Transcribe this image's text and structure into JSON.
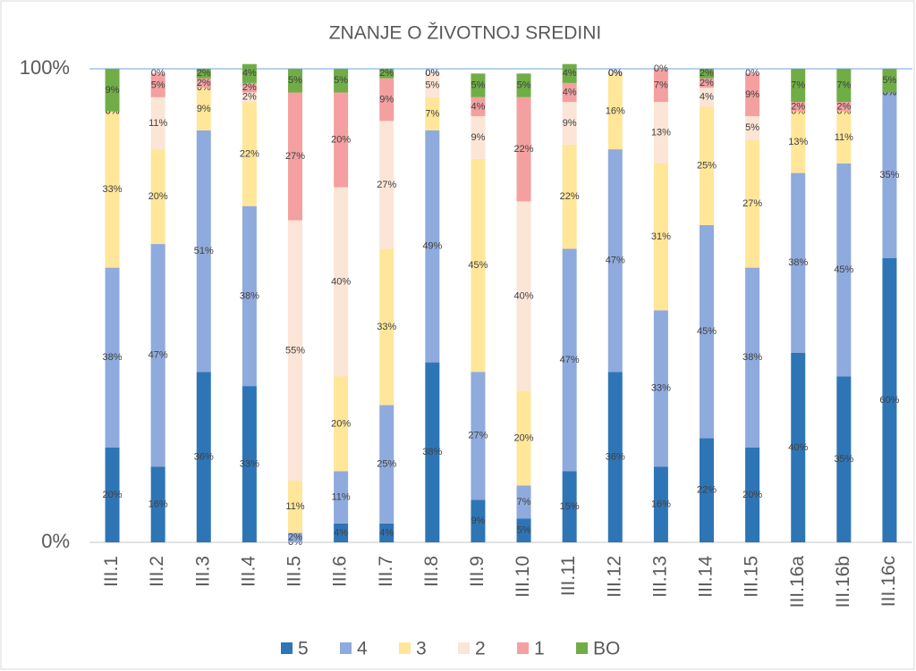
{
  "chart_data": {
    "type": "stacked_bar_100",
    "title": "ZNANJE O ŽIVOTNOJ SREDINI",
    "categories": [
      "III.1",
      "III.2",
      "III.3",
      "III.4",
      "III.5",
      "III.6",
      "III.7",
      "III.8",
      "III.9",
      "III.10",
      "III.11",
      "III.12",
      "III.13",
      "III.14",
      "III.15",
      "III.16a",
      "III.16b",
      "III.16c"
    ],
    "series": [
      {
        "name": "5",
        "color": "#2e75b6",
        "values": [
          20,
          16,
          36,
          33,
          0,
          4,
          4,
          38,
          9,
          5,
          15,
          36,
          16,
          22,
          20,
          40,
          35,
          60
        ],
        "value_labels": [
          "20%",
          "16%",
          "36%",
          "33%",
          "0%",
          "4%",
          "4%",
          "38%",
          "9%",
          "5%",
          "15%",
          "36%",
          "16%",
          "22%",
          "20%",
          "40%",
          "35%",
          "60%"
        ]
      },
      {
        "name": "4",
        "color": "#8faadc",
        "values": [
          38,
          47,
          51,
          38,
          2,
          11,
          25,
          49,
          27,
          7,
          47,
          47,
          33,
          45,
          38,
          38,
          45,
          35
        ],
        "value_labels": [
          "38%",
          "47%",
          "51%",
          "38%",
          "2%",
          "11%",
          "25%",
          "49%",
          "27%",
          "7%",
          "47%",
          "47%",
          "33%",
          "45%",
          "38%",
          "38%",
          "45%",
          "35%"
        ]
      },
      {
        "name": "3",
        "color": "#ffe699",
        "values": [
          33,
          20,
          9,
          22,
          11,
          20,
          33,
          7,
          45,
          20,
          22,
          16,
          31,
          25,
          27,
          13,
          11,
          0
        ],
        "value_labels": [
          "33%",
          "20%",
          "9%",
          "22%",
          "11%",
          "20%",
          "33%",
          "7%",
          "45%",
          "20%",
          "22%",
          "16%",
          "31%",
          "25%",
          "27%",
          "13%",
          "11%",
          "0%"
        ]
      },
      {
        "name": "2",
        "color": "#fbe5d6",
        "values": [
          0,
          11,
          0,
          2,
          55,
          40,
          27,
          5,
          9,
          40,
          9,
          0,
          13,
          4,
          5,
          0,
          0,
          0
        ],
        "value_labels": [
          "0%",
          "11%",
          "0%",
          "2%",
          "55%",
          "40%",
          "27%",
          "5%",
          "9%",
          "40%",
          "9%",
          "0%",
          "13%",
          "4%",
          "5%",
          "0%",
          "0%",
          "0%"
        ]
      },
      {
        "name": "1",
        "color": "#f4a0a0",
        "values": [
          0,
          5,
          2,
          2,
          27,
          20,
          9,
          0,
          4,
          22,
          4,
          0,
          7,
          2,
          9,
          2,
          2,
          0
        ],
        "value_labels": [
          "0%",
          "5%",
          "2%",
          "2%",
          "27%",
          "20%",
          "9%",
          "0%",
          "4%",
          "22%",
          "4%",
          "0%",
          "7%",
          "2%",
          "9%",
          "2%",
          "2%",
          "0%"
        ]
      },
      {
        "name": "BO",
        "color": "#70ad47",
        "values": [
          9,
          0,
          2,
          4,
          5,
          5,
          2,
          0,
          5,
          5,
          4,
          0,
          0,
          2,
          0,
          7,
          7,
          5
        ],
        "value_labels": [
          "9%",
          "0%",
          "2%",
          "4%",
          "5%",
          "5%",
          "2%",
          "0%",
          "5%",
          "5%",
          "4%",
          "0%",
          "0%",
          "2%",
          "0%",
          "7%",
          "7%",
          "5%"
        ]
      }
    ],
    "ylim": [
      0,
      100
    ],
    "yticks": [
      {
        "value": 0,
        "label": "0%"
      },
      {
        "value": 100,
        "label": "100%"
      }
    ],
    "grid": true,
    "legend": "bottom"
  }
}
